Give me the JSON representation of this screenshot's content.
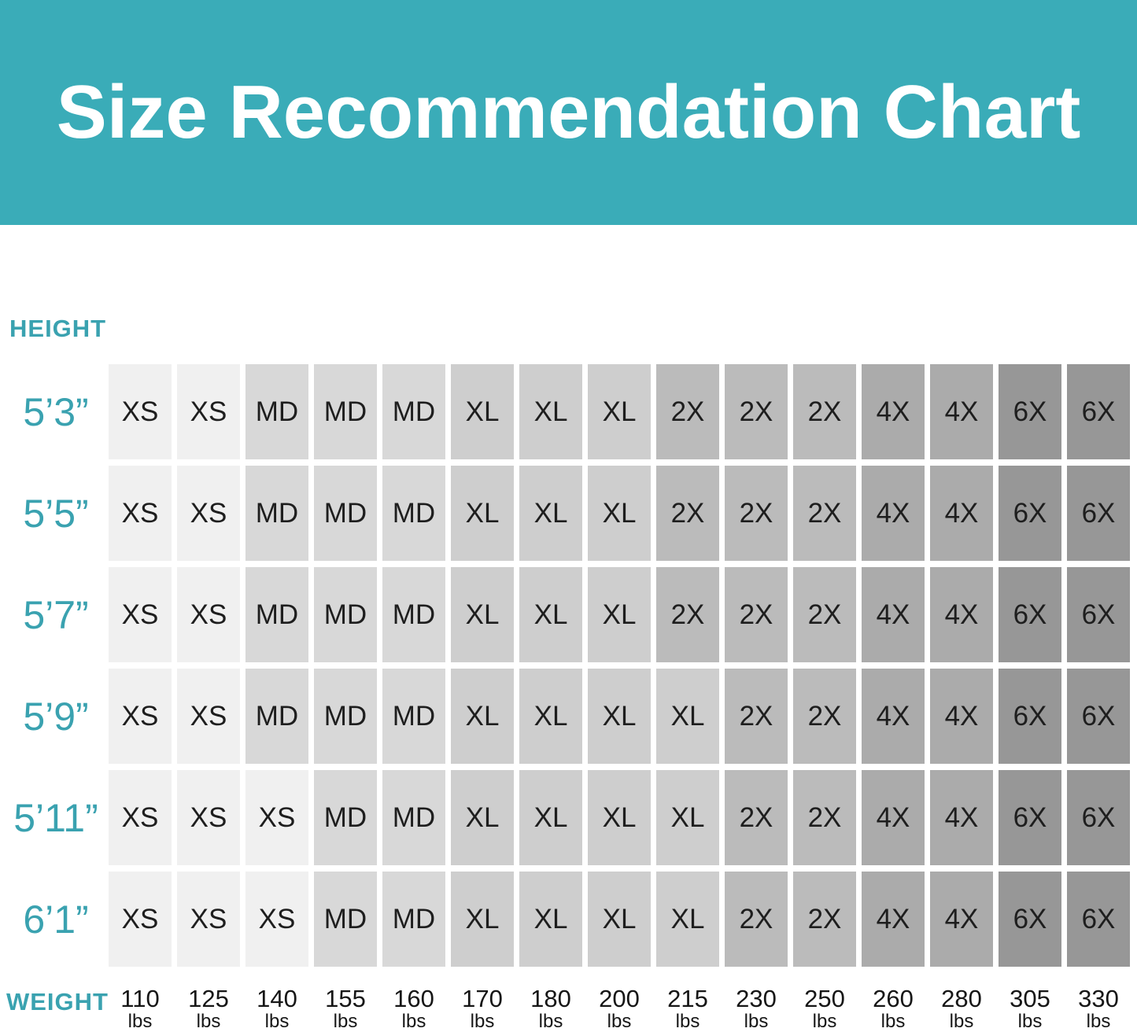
{
  "banner": {
    "title": "Size Recommendation Chart",
    "bg": "#3aacb8",
    "fg": "#ffffff"
  },
  "labels": {
    "height": "HEIGHT",
    "weight": "WEIGHT",
    "unit": "lbs",
    "accent": "#3aa2b0"
  },
  "chart_data": {
    "type": "heatmap",
    "title": "Size Recommendation Chart",
    "row_header": "HEIGHT",
    "col_header": "WEIGHT",
    "rows": [
      "5’3”",
      "5’5”",
      "5’7”",
      "5’9”",
      "5’11”",
      "6’1”"
    ],
    "columns_weight_lbs": [
      110,
      125,
      140,
      155,
      160,
      170,
      180,
      200,
      215,
      230,
      250,
      260,
      280,
      305,
      330
    ],
    "column_unit": "lbs",
    "values": [
      [
        "XS",
        "XS",
        "MD",
        "MD",
        "MD",
        "XL",
        "XL",
        "XL",
        "2X",
        "2X",
        "2X",
        "4X",
        "4X",
        "6X",
        "6X"
      ],
      [
        "XS",
        "XS",
        "MD",
        "MD",
        "MD",
        "XL",
        "XL",
        "XL",
        "2X",
        "2X",
        "2X",
        "4X",
        "4X",
        "6X",
        "6X"
      ],
      [
        "XS",
        "XS",
        "MD",
        "MD",
        "MD",
        "XL",
        "XL",
        "XL",
        "2X",
        "2X",
        "2X",
        "4X",
        "4X",
        "6X",
        "6X"
      ],
      [
        "XS",
        "XS",
        "MD",
        "MD",
        "MD",
        "XL",
        "XL",
        "XL",
        "XL",
        "2X",
        "2X",
        "4X",
        "4X",
        "6X",
        "6X"
      ],
      [
        "XS",
        "XS",
        "XS",
        "MD",
        "MD",
        "XL",
        "XL",
        "XL",
        "XL",
        "2X",
        "2X",
        "4X",
        "4X",
        "6X",
        "6X"
      ],
      [
        "XS",
        "XS",
        "XS",
        "MD",
        "MD",
        "XL",
        "XL",
        "XL",
        "XL",
        "2X",
        "2X",
        "4X",
        "4X",
        "6X",
        "6X"
      ]
    ],
    "cell_colors_by_value": {
      "XS": "#f0f0f0",
      "MD": "#d8d8d8",
      "XL": "#cecece",
      "2X": "#bbbbbb",
      "4X": "#ababab",
      "6X": "#979797"
    }
  }
}
